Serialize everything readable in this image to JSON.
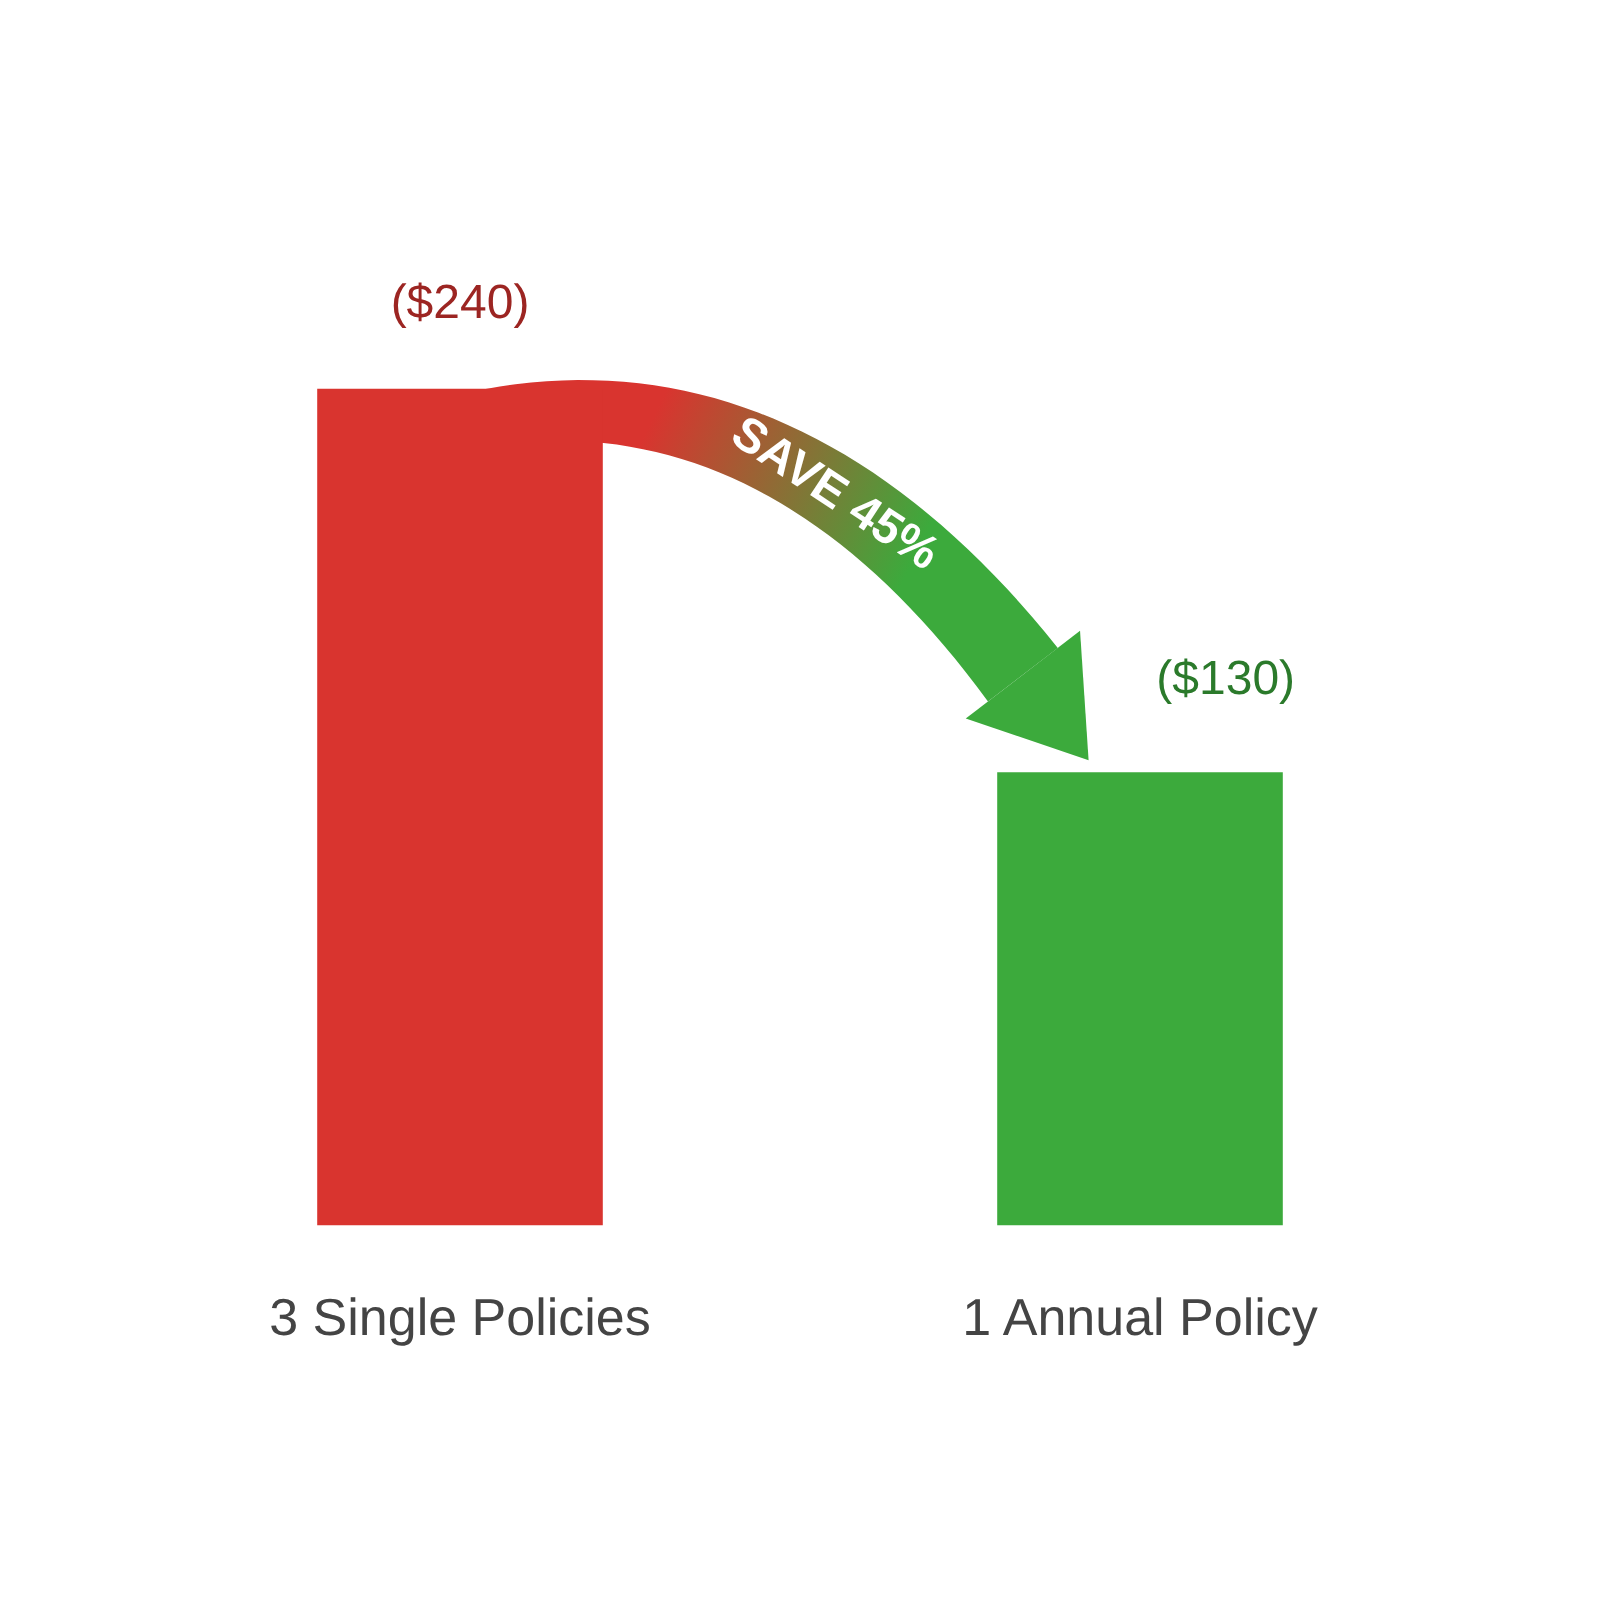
{
  "chart_data": {
    "type": "bar",
    "categories": [
      "3 Single Policies",
      "1 Annual Policy"
    ],
    "values": [
      240,
      130
    ],
    "colors": [
      "#d9342f",
      "#3caa3c"
    ],
    "value_labels": [
      "($240)",
      "($130)"
    ],
    "annotations": [
      "SAVE 45%"
    ],
    "grid": false,
    "legend": false
  }
}
